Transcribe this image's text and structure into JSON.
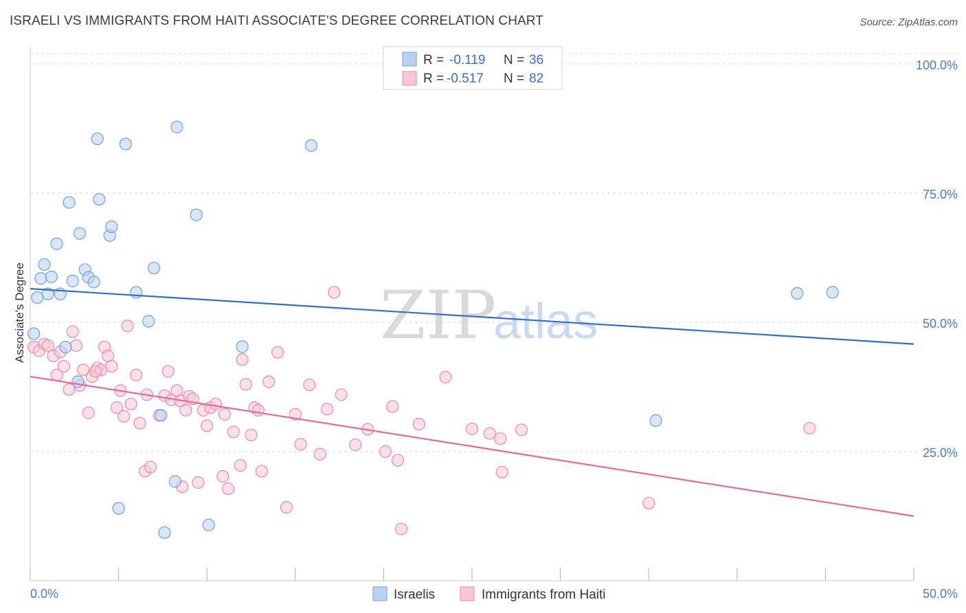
{
  "header": {
    "title": "ISRAELI VS IMMIGRANTS FROM HAITI ASSOCIATE'S DEGREE CORRELATION CHART",
    "source": "Source: ZipAtlas.com"
  },
  "watermark": {
    "zip": "ZIP",
    "atlas": "atlas"
  },
  "colors": {
    "israeli_fill": "#b9d2f3",
    "israeli_stroke": "#6f9fdc",
    "israeli_line": "#2f6fce",
    "haiti_fill": "#f9c6d5",
    "haiti_stroke": "#e98aa9",
    "haiti_line": "#e8689a",
    "tick_text": "#4a7cc7",
    "grid": "#d9d9d9"
  },
  "stats_legend": {
    "rows": [
      {
        "r_label": "R =",
        "r_value": "-0.119",
        "n_label": "N =",
        "n_value": "36",
        "color_key": "israeli"
      },
      {
        "r_label": "R =",
        "r_value": "-0.517",
        "n_label": "N =",
        "n_value": "82",
        "color_key": "haiti"
      }
    ]
  },
  "chart_data": {
    "type": "scatter",
    "title": "ISRAELI VS IMMIGRANTS FROM HAITI ASSOCIATE'S DEGREE CORRELATION CHART",
    "xlabel": "",
    "ylabel": "Associate's Degree",
    "xlim": [
      0,
      50
    ],
    "ylim": [
      0,
      102
    ],
    "x_tick_labels": [
      "0.0%",
      "50.0%"
    ],
    "y_ticks": [
      25,
      50,
      75,
      100
    ],
    "y_tick_labels": [
      "25.0%",
      "50.0%",
      "75.0%",
      "100.0%"
    ],
    "legend": [
      "Israelis",
      "Immigrants from Haiti"
    ],
    "series": [
      {
        "name": "Israelis",
        "trend": {
          "x": [
            0,
            50
          ],
          "y": [
            56.5,
            45.8
          ]
        },
        "points": [
          [
            0.4,
            54.8
          ],
          [
            0.6,
            58.5
          ],
          [
            0.8,
            61.2
          ],
          [
            1.0,
            55.5
          ],
          [
            1.2,
            58.8
          ],
          [
            1.5,
            65.2
          ],
          [
            1.7,
            55.5
          ],
          [
            2.0,
            45.2
          ],
          [
            2.2,
            73.2
          ],
          [
            2.4,
            58.0
          ],
          [
            2.8,
            67.2
          ],
          [
            3.1,
            60.2
          ],
          [
            3.3,
            58.7
          ],
          [
            3.6,
            57.8
          ],
          [
            3.8,
            85.5
          ],
          [
            3.9,
            73.8
          ],
          [
            4.5,
            66.8
          ],
          [
            4.6,
            68.5
          ],
          [
            5.4,
            84.5
          ],
          [
            6.0,
            55.8
          ],
          [
            6.7,
            50.2
          ],
          [
            7.0,
            60.5
          ],
          [
            7.4,
            32.0
          ],
          [
            7.6,
            9.3
          ],
          [
            8.2,
            19.2
          ],
          [
            8.3,
            87.8
          ],
          [
            9.4,
            70.8
          ],
          [
            10.1,
            10.8
          ],
          [
            12.0,
            45.3
          ],
          [
            15.9,
            84.2
          ],
          [
            5.0,
            14.0
          ],
          [
            2.7,
            38.5
          ],
          [
            35.4,
            31.0
          ],
          [
            43.4,
            55.6
          ],
          [
            45.4,
            55.8
          ],
          [
            0.2,
            47.8
          ]
        ]
      },
      {
        "name": "Immigrants from Haiti",
        "trend": {
          "x": [
            0,
            50
          ],
          "y": [
            39.5,
            12.5
          ]
        },
        "points": [
          [
            0.2,
            45.2
          ],
          [
            0.5,
            44.5
          ],
          [
            0.8,
            45.8
          ],
          [
            1.0,
            45.5
          ],
          [
            1.3,
            43.5
          ],
          [
            1.5,
            39.8
          ],
          [
            1.7,
            44.3
          ],
          [
            1.9,
            41.5
          ],
          [
            2.2,
            37.0
          ],
          [
            2.4,
            48.2
          ],
          [
            2.6,
            45.5
          ],
          [
            2.8,
            37.8
          ],
          [
            3.0,
            40.8
          ],
          [
            3.3,
            32.5
          ],
          [
            3.5,
            39.5
          ],
          [
            3.8,
            41.2
          ],
          [
            4.0,
            40.8
          ],
          [
            4.2,
            45.2
          ],
          [
            4.4,
            43.5
          ],
          [
            4.6,
            41.5
          ],
          [
            4.9,
            33.5
          ],
          [
            5.1,
            36.8
          ],
          [
            5.3,
            31.8
          ],
          [
            5.5,
            49.3
          ],
          [
            5.7,
            34.2
          ],
          [
            6.0,
            39.8
          ],
          [
            6.2,
            30.5
          ],
          [
            6.5,
            21.2
          ],
          [
            6.8,
            22.0
          ],
          [
            6.6,
            36.0
          ],
          [
            7.3,
            32.0
          ],
          [
            7.6,
            35.8
          ],
          [
            7.8,
            40.5
          ],
          [
            8.0,
            35.0
          ],
          [
            8.3,
            36.8
          ],
          [
            8.5,
            34.8
          ],
          [
            8.6,
            18.2
          ],
          [
            8.8,
            33.0
          ],
          [
            9.0,
            35.7
          ],
          [
            9.2,
            35.2
          ],
          [
            9.5,
            19.0
          ],
          [
            9.8,
            33.0
          ],
          [
            10.0,
            30.0
          ],
          [
            10.2,
            33.5
          ],
          [
            10.5,
            34.2
          ],
          [
            10.9,
            20.2
          ],
          [
            11.0,
            32.2
          ],
          [
            11.2,
            17.8
          ],
          [
            11.5,
            28.8
          ],
          [
            11.9,
            22.3
          ],
          [
            12.0,
            42.8
          ],
          [
            12.2,
            38.0
          ],
          [
            12.5,
            28.2
          ],
          [
            12.7,
            33.5
          ],
          [
            12.9,
            33.0
          ],
          [
            13.1,
            21.2
          ],
          [
            13.5,
            38.5
          ],
          [
            14.0,
            44.2
          ],
          [
            14.5,
            14.2
          ],
          [
            15.0,
            32.2
          ],
          [
            15.3,
            26.4
          ],
          [
            15.8,
            37.9
          ],
          [
            16.4,
            24.5
          ],
          [
            16.8,
            33.2
          ],
          [
            17.6,
            36.0
          ],
          [
            17.2,
            55.8
          ],
          [
            18.4,
            26.3
          ],
          [
            19.1,
            29.3
          ],
          [
            20.1,
            25.0
          ],
          [
            20.5,
            33.7
          ],
          [
            20.8,
            23.3
          ],
          [
            21.0,
            10.0
          ],
          [
            22.0,
            30.3
          ],
          [
            23.5,
            39.4
          ],
          [
            25.0,
            29.4
          ],
          [
            26.0,
            28.5
          ],
          [
            26.7,
            21.0
          ],
          [
            27.8,
            29.2
          ],
          [
            35.0,
            15.0
          ],
          [
            44.1,
            29.5
          ],
          [
            26.6,
            27.5
          ],
          [
            3.7,
            40.5
          ]
        ]
      }
    ]
  }
}
